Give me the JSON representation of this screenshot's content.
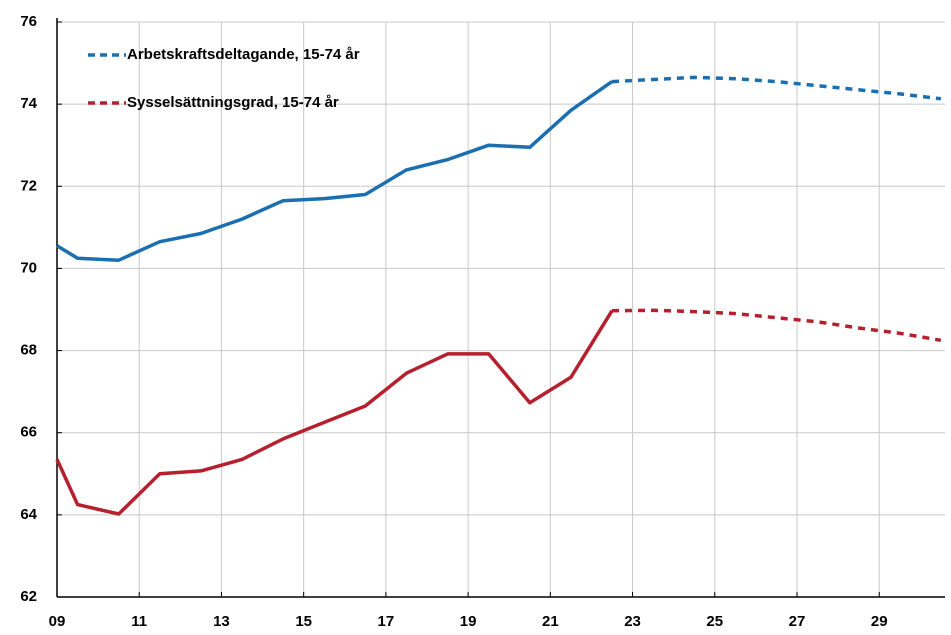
{
  "chart_data": {
    "type": "line",
    "x": [
      9,
      9.5,
      10.5,
      11.5,
      12.5,
      13.5,
      14.5,
      15.5,
      16.5,
      17.5,
      18.5,
      19.5,
      20.5,
      21.5,
      22.5,
      23.5,
      24.5,
      25.5,
      26.5,
      27.5,
      28.5,
      29.5,
      30.5
    ],
    "forecast_from": 22.5,
    "series": [
      {
        "name": "Arbetskraftsdeltagande, 15-74 år",
        "color": "#1b6fb0",
        "values": [
          70.55,
          70.25,
          70.2,
          70.65,
          70.85,
          71.2,
          71.65,
          71.7,
          71.8,
          72.4,
          72.65,
          73.0,
          72.95,
          73.85,
          74.55,
          74.6,
          74.65,
          74.62,
          74.55,
          74.45,
          74.35,
          74.25,
          74.13
        ]
      },
      {
        "name": "Sysselsättningsgrad, 15-74 år",
        "color": "#b5202e",
        "values": [
          65.35,
          64.25,
          64.02,
          65.0,
          65.07,
          65.35,
          65.85,
          66.25,
          66.65,
          67.45,
          67.92,
          67.92,
          66.73,
          67.35,
          68.97,
          68.98,
          68.95,
          68.9,
          68.8,
          68.7,
          68.55,
          68.42,
          68.25
        ]
      }
    ],
    "xlim": [
      9,
      30.6
    ],
    "xticks": [
      {
        "value": 9,
        "label": "09"
      },
      11,
      13,
      15,
      17,
      19,
      21,
      23,
      25,
      27,
      29
    ],
    "ylim": [
      62,
      76
    ],
    "yticks": [
      62,
      64,
      66,
      68,
      70,
      72,
      74,
      76
    ],
    "grid": true,
    "legend": "upper left"
  }
}
